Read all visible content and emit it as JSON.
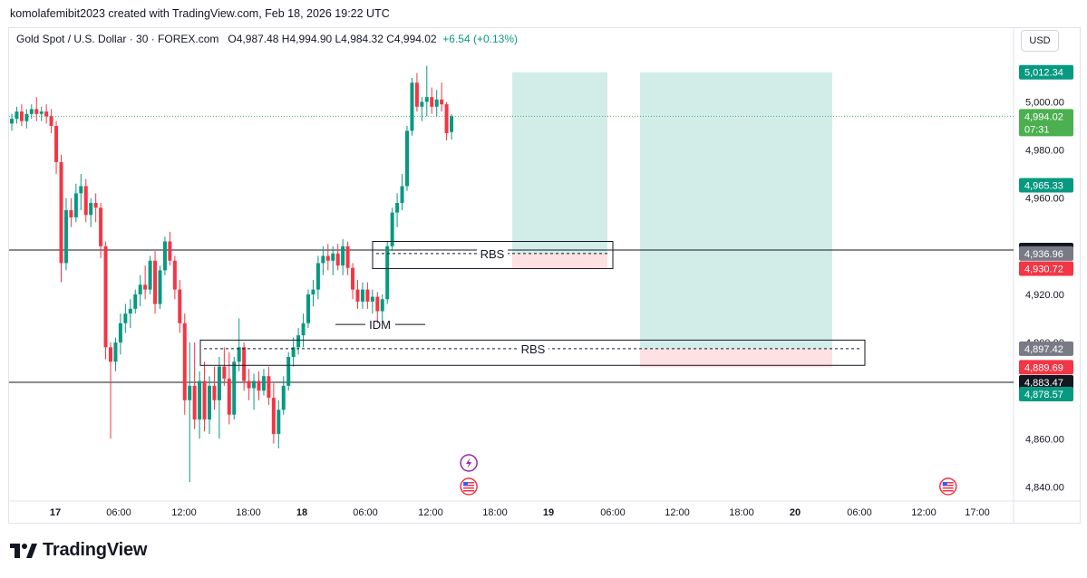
{
  "caption": "komolafemibit2023 created with TradingView.com, Feb 18, 2026 19:22 UTC",
  "symbol": {
    "name": "Gold Spot / U.S. Dollar · 30 · FOREX.com",
    "ohlc": "O4,987.48  H4,994.90  L4,984.32  C4,994.02",
    "change": "+6.54 (+0.13%)"
  },
  "currency_button": "USD",
  "footer_brand": "TradingView",
  "chart_data": {
    "type": "candlestick",
    "y_axis_ticks": [
      "5,000.00",
      "4,980.00",
      "4,960.00",
      "4,920.00",
      "4,900.00",
      "4,860.00",
      "4,840.00"
    ],
    "y_range": [
      4836,
      5016
    ],
    "x_axis_ticks": [
      "17",
      "06:00",
      "12:00",
      "18:00",
      "18",
      "06:00",
      "12:00",
      "18:00",
      "19",
      "06:00",
      "12:00",
      "18:00",
      "20",
      "06:00",
      "12:00",
      "17:00"
    ],
    "price_labels": [
      {
        "text": "5,012.34",
        "value": 5012.34,
        "color": "#089981"
      },
      {
        "text": "4,994.02",
        "value": 4994.02,
        "color": "#4caf50",
        "sub": "07:31"
      },
      {
        "text": "4,965.33",
        "value": 4965.33,
        "color": "#089981"
      },
      {
        "text": "4,938.44",
        "value": 4938.44,
        "color": "#131722"
      },
      {
        "text": "4,936.96",
        "value": 4936.96,
        "color": "#787b86"
      },
      {
        "text": "4,930.72",
        "value": 4930.72,
        "color": "#f23645"
      },
      {
        "text": "4,897.42",
        "value": 4897.42,
        "color": "#787b86"
      },
      {
        "text": "4,889.69",
        "value": 4889.69,
        "color": "#f23645"
      },
      {
        "text": "4,883.47",
        "value": 4883.47,
        "color": "#131722"
      },
      {
        "text": "4,878.57",
        "value": 4878.57,
        "color": "#089981"
      }
    ],
    "horizontal_lines": [
      4938.44,
      4883.47
    ],
    "current_price": 4994.02,
    "annotations": [
      {
        "text": "RBS",
        "zone": [
          4936.96,
          4938.44
        ],
        "box": [
          4930.72,
          4942
        ]
      },
      {
        "text": "RBS",
        "zone": [
          4897.42,
          4897.42
        ],
        "box": [
          4890.5,
          4901
        ]
      },
      {
        "text": "IDM",
        "level": 4909
      }
    ],
    "positions": [
      {
        "entry": 4936.96,
        "stop": 4930.72,
        "target": 5012.34
      },
      {
        "entry": 4897.42,
        "stop": 4889.69,
        "target": 5012.34
      }
    ],
    "candles": [
      {
        "o": 4991.0,
        "h": 4995.0,
        "l": 4988.0,
        "c": 4993.0
      },
      {
        "o": 4993.0,
        "h": 4998.0,
        "l": 4991.0,
        "c": 4996.0
      },
      {
        "o": 4996.0,
        "h": 4999.0,
        "l": 4990.0,
        "c": 4992.0
      },
      {
        "o": 4992.0,
        "h": 4997.0,
        "l": 4989.0,
        "c": 4995.0
      },
      {
        "o": 4995.0,
        "h": 4999.0,
        "l": 4993.0,
        "c": 4997.0
      },
      {
        "o": 4997.0,
        "h": 5002.0,
        "l": 4992.0,
        "c": 4995.0
      },
      {
        "o": 4995.0,
        "h": 4998.0,
        "l": 4992.0,
        "c": 4996.0
      },
      {
        "o": 4996.0,
        "h": 4999.0,
        "l": 4991.0,
        "c": 4994.0
      },
      {
        "o": 4994.0,
        "h": 4997.0,
        "l": 4987.0,
        "c": 4990.0
      },
      {
        "o": 4990.0,
        "h": 4992.0,
        "l": 4970.0,
        "c": 4975.0
      },
      {
        "o": 4975.0,
        "h": 4978.0,
        "l": 4925.0,
        "c": 4933.0
      },
      {
        "o": 4933.0,
        "h": 4960.0,
        "l": 4930.0,
        "c": 4955.0
      },
      {
        "o": 4955.0,
        "h": 4960.0,
        "l": 4948.0,
        "c": 4952.0
      },
      {
        "o": 4952.0,
        "h": 4966.0,
        "l": 4950.0,
        "c": 4962.0
      },
      {
        "o": 4962.0,
        "h": 4970.0,
        "l": 4955.0,
        "c": 4965.0
      },
      {
        "o": 4965.0,
        "h": 4968.0,
        "l": 4950.0,
        "c": 4953.0
      },
      {
        "o": 4953.0,
        "h": 4960.0,
        "l": 4948.0,
        "c": 4958.0
      },
      {
        "o": 4958.0,
        "h": 4962.0,
        "l": 4950.0,
        "c": 4956.0
      },
      {
        "o": 4956.0,
        "h": 4958.0,
        "l": 4935.0,
        "c": 4940.0
      },
      {
        "o": 4940.0,
        "h": 4942.0,
        "l": 4893.0,
        "c": 4898.0
      },
      {
        "o": 4898.0,
        "h": 4900.0,
        "l": 4860.0,
        "c": 4892.0
      },
      {
        "o": 4892.0,
        "h": 4902.0,
        "l": 4888.0,
        "c": 4900.0
      },
      {
        "o": 4900.0,
        "h": 4912.0,
        "l": 4895.0,
        "c": 4908.0
      },
      {
        "o": 4908.0,
        "h": 4916.0,
        "l": 4904.0,
        "c": 4912.0
      },
      {
        "o": 4912.0,
        "h": 4918.0,
        "l": 4906.0,
        "c": 4914.0
      },
      {
        "o": 4914.0,
        "h": 4922.0,
        "l": 4912.0,
        "c": 4920.0
      },
      {
        "o": 4920.0,
        "h": 4928.0,
        "l": 4915.0,
        "c": 4924.0
      },
      {
        "o": 4924.0,
        "h": 4932.0,
        "l": 4918.0,
        "c": 4922.0
      },
      {
        "o": 4922.0,
        "h": 4936.0,
        "l": 4920.0,
        "c": 4934.0
      },
      {
        "o": 4934.0,
        "h": 4938.0,
        "l": 4912.0,
        "c": 4916.0
      },
      {
        "o": 4916.0,
        "h": 4932.0,
        "l": 4914.0,
        "c": 4930.0
      },
      {
        "o": 4930.0,
        "h": 4944.0,
        "l": 4928.0,
        "c": 4942.0
      },
      {
        "o": 4942.0,
        "h": 4946.0,
        "l": 4932.0,
        "c": 4934.0
      },
      {
        "o": 4934.0,
        "h": 4936.0,
        "l": 4918.0,
        "c": 4922.0
      },
      {
        "o": 4922.0,
        "h": 4926.0,
        "l": 4904.0,
        "c": 4908.0
      },
      {
        "o": 4908.0,
        "h": 4912.0,
        "l": 4870.0,
        "c": 4876.0
      },
      {
        "o": 4876.0,
        "h": 4900.0,
        "l": 4842.0,
        "c": 4882.0
      },
      {
        "o": 4882.0,
        "h": 4900.0,
        "l": 4864.0,
        "c": 4868.0
      },
      {
        "o": 4868.0,
        "h": 4888.0,
        "l": 4860.0,
        "c": 4884.0
      },
      {
        "o": 4884.0,
        "h": 4892.0,
        "l": 4863.0,
        "c": 4868.0
      },
      {
        "o": 4868.0,
        "h": 4886.0,
        "l": 4862.0,
        "c": 4882.0
      },
      {
        "o": 4882.0,
        "h": 4890.0,
        "l": 4872.0,
        "c": 4876.0
      },
      {
        "o": 4876.0,
        "h": 4894.0,
        "l": 4860.0,
        "c": 4890.0
      },
      {
        "o": 4890.0,
        "h": 4898.0,
        "l": 4882.0,
        "c": 4885.0
      },
      {
        "o": 4885.0,
        "h": 4896.0,
        "l": 4866.0,
        "c": 4870.0
      },
      {
        "o": 4870.0,
        "h": 4894.0,
        "l": 4868.0,
        "c": 4892.0
      },
      {
        "o": 4892.0,
        "h": 4910.0,
        "l": 4888.0,
        "c": 4898.0
      },
      {
        "o": 4898.0,
        "h": 4900.0,
        "l": 4880.0,
        "c": 4884.0
      },
      {
        "o": 4884.0,
        "h": 4889.0,
        "l": 4876.0,
        "c": 4881.0
      },
      {
        "o": 4881.0,
        "h": 4887.0,
        "l": 4872.0,
        "c": 4884.0
      },
      {
        "o": 4884.0,
        "h": 4888.0,
        "l": 4876.0,
        "c": 4880.0
      },
      {
        "o": 4880.0,
        "h": 4889.0,
        "l": 4878.0,
        "c": 4886.0
      },
      {
        "o": 4886.0,
        "h": 4890.0,
        "l": 4874.0,
        "c": 4877.0
      },
      {
        "o": 4877.0,
        "h": 4883.0,
        "l": 4858.0,
        "c": 4862.0
      },
      {
        "o": 4862.0,
        "h": 4876.0,
        "l": 4856.0,
        "c": 4872.0
      },
      {
        "o": 4872.0,
        "h": 4886.0,
        "l": 4870.0,
        "c": 4882.0
      },
      {
        "o": 4882.0,
        "h": 4896.0,
        "l": 4880.0,
        "c": 4894.0
      },
      {
        "o": 4894.0,
        "h": 4902.0,
        "l": 4890.0,
        "c": 4898.0
      },
      {
        "o": 4898.0,
        "h": 4906.0,
        "l": 4895.0,
        "c": 4903.0
      },
      {
        "o": 4903.0,
        "h": 4912.0,
        "l": 4898.0,
        "c": 4908.0
      },
      {
        "o": 4908.0,
        "h": 4922.0,
        "l": 4906.0,
        "c": 4920.0
      },
      {
        "o": 4920.0,
        "h": 4926.0,
        "l": 4915.0,
        "c": 4922.0
      },
      {
        "o": 4922.0,
        "h": 4936.0,
        "l": 4918.0,
        "c": 4933.0
      },
      {
        "o": 4933.0,
        "h": 4940.0,
        "l": 4928.0,
        "c": 4936.0
      },
      {
        "o": 4936.0,
        "h": 4941.0,
        "l": 4930.0,
        "c": 4934.0
      },
      {
        "o": 4934.0,
        "h": 4940.0,
        "l": 4928.0,
        "c": 4937.0
      },
      {
        "o": 4937.0,
        "h": 4941.0,
        "l": 4930.0,
        "c": 4932.0
      },
      {
        "o": 4932.0,
        "h": 4943.0,
        "l": 4928.0,
        "c": 4940.0
      },
      {
        "o": 4940.0,
        "h": 4942.0,
        "l": 4928.0,
        "c": 4931.0
      },
      {
        "o": 4931.0,
        "h": 4933.0,
        "l": 4918.0,
        "c": 4922.0
      },
      {
        "o": 4922.0,
        "h": 4926.0,
        "l": 4914.0,
        "c": 4917.0
      },
      {
        "o": 4917.0,
        "h": 4925.0,
        "l": 4914.0,
        "c": 4922.0
      },
      {
        "o": 4922.0,
        "h": 4925.0,
        "l": 4914.0,
        "c": 4917.0
      },
      {
        "o": 4917.0,
        "h": 4922.0,
        "l": 4912.0,
        "c": 4919.0
      },
      {
        "o": 4919.0,
        "h": 4921.0,
        "l": 4908.0,
        "c": 4913.0
      },
      {
        "o": 4913.0,
        "h": 4920.0,
        "l": 4909.0,
        "c": 4918.0
      },
      {
        "o": 4918.0,
        "h": 4942.0,
        "l": 4916.0,
        "c": 4940.0
      },
      {
        "o": 4940.0,
        "h": 4956.0,
        "l": 4938.0,
        "c": 4954.0
      },
      {
        "o": 4954.0,
        "h": 4962.0,
        "l": 4948.0,
        "c": 4958.0
      },
      {
        "o": 4958.0,
        "h": 4970.0,
        "l": 4955.0,
        "c": 4965.0
      },
      {
        "o": 4965.0,
        "h": 4990.0,
        "l": 4963.0,
        "c": 4988.0
      },
      {
        "o": 4988.0,
        "h": 5010.0,
        "l": 4986.0,
        "c": 5008.0
      },
      {
        "o": 5008.0,
        "h": 5012.0,
        "l": 4996.0,
        "c": 4998.0
      },
      {
        "o": 4998.0,
        "h": 5002.0,
        "l": 4992.0,
        "c": 5000.0
      },
      {
        "o": 5000.0,
        "h": 5015.0,
        "l": 4994.0,
        "c": 5002.0
      },
      {
        "o": 5002.0,
        "h": 5006.0,
        "l": 4995.0,
        "c": 4998.0
      },
      {
        "o": 4998.0,
        "h": 5005.0,
        "l": 4994.0,
        "c": 5001.0
      },
      {
        "o": 5001.0,
        "h": 5008.0,
        "l": 4996.0,
        "c": 4999.0
      },
      {
        "o": 4999.0,
        "h": 5000.0,
        "l": 4984.0,
        "c": 4987.0
      },
      {
        "o": 4987.48,
        "h": 4994.9,
        "l": 4984.32,
        "c": 4994.02
      }
    ],
    "event_icons": [
      {
        "icon": "lightning-icon",
        "x_index": 92.5,
        "color": "#9c27b0"
      },
      {
        "icon": "us-flag-icon",
        "x_index": 92.5,
        "color": "#f23645"
      },
      {
        "icon": "us-flag-icon",
        "x_index": 189.5,
        "color": "#f23645"
      }
    ]
  }
}
